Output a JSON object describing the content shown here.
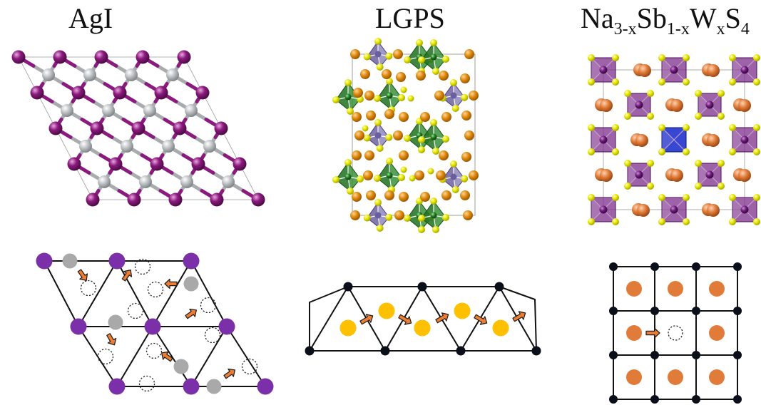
{
  "titles": {
    "agi": "AgI",
    "lgps": "LGPS",
    "na": {
      "p1": "Na",
      "s1": "3-x",
      "p2": "Sb",
      "s2": "1-x",
      "p3": "W",
      "s3": "x",
      "p4": "S",
      "s4": "4"
    }
  },
  "colors": {
    "iodine": "#8B1A7E",
    "silver": "#B9BDC0",
    "framework_purple": "#7B2FA8",
    "migrating_gray": "#A9A9A9",
    "lgps_li": "#E08A0E",
    "lgps_s": "#E6E600",
    "lgps_tetra_green": "#2E8B2E",
    "lgps_tetra_purple": "#8A7FB8",
    "na_ion": "#E07B39",
    "na_w_center": "#2233CC",
    "arrow": "#ED7D31",
    "lattice_node": "#0B0F1A",
    "lgps_schematic_ion": "#FFC000"
  },
  "icons": {
    "hop_arrow": "orange-arrow-icon",
    "vacancy": "dashed-circle-icon"
  }
}
